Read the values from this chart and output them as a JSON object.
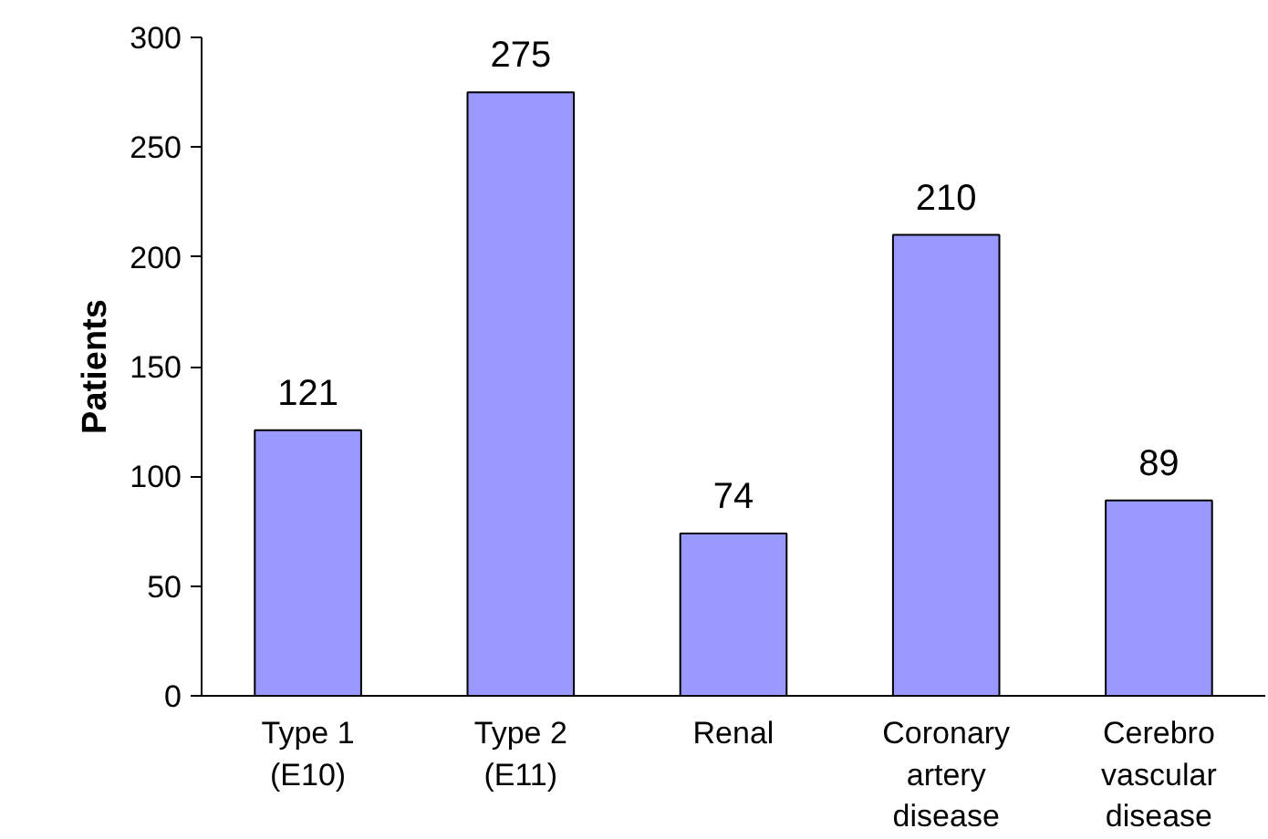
{
  "chart_data": {
    "type": "bar",
    "ylabel": "Patients",
    "categories": [
      "Type 1\n(E10)",
      "Type 2\n(E11)",
      "Renal",
      "Coronary\nartery\ndisease",
      "Cerebro\nvascular\ndisease"
    ],
    "values": [
      121,
      275,
      74,
      210,
      89
    ],
    "color": "#9999ff",
    "ylim": [
      0,
      300
    ],
    "yticks": [
      0,
      50,
      100,
      150,
      200,
      250,
      300
    ],
    "data_labels": true,
    "grid": false
  }
}
